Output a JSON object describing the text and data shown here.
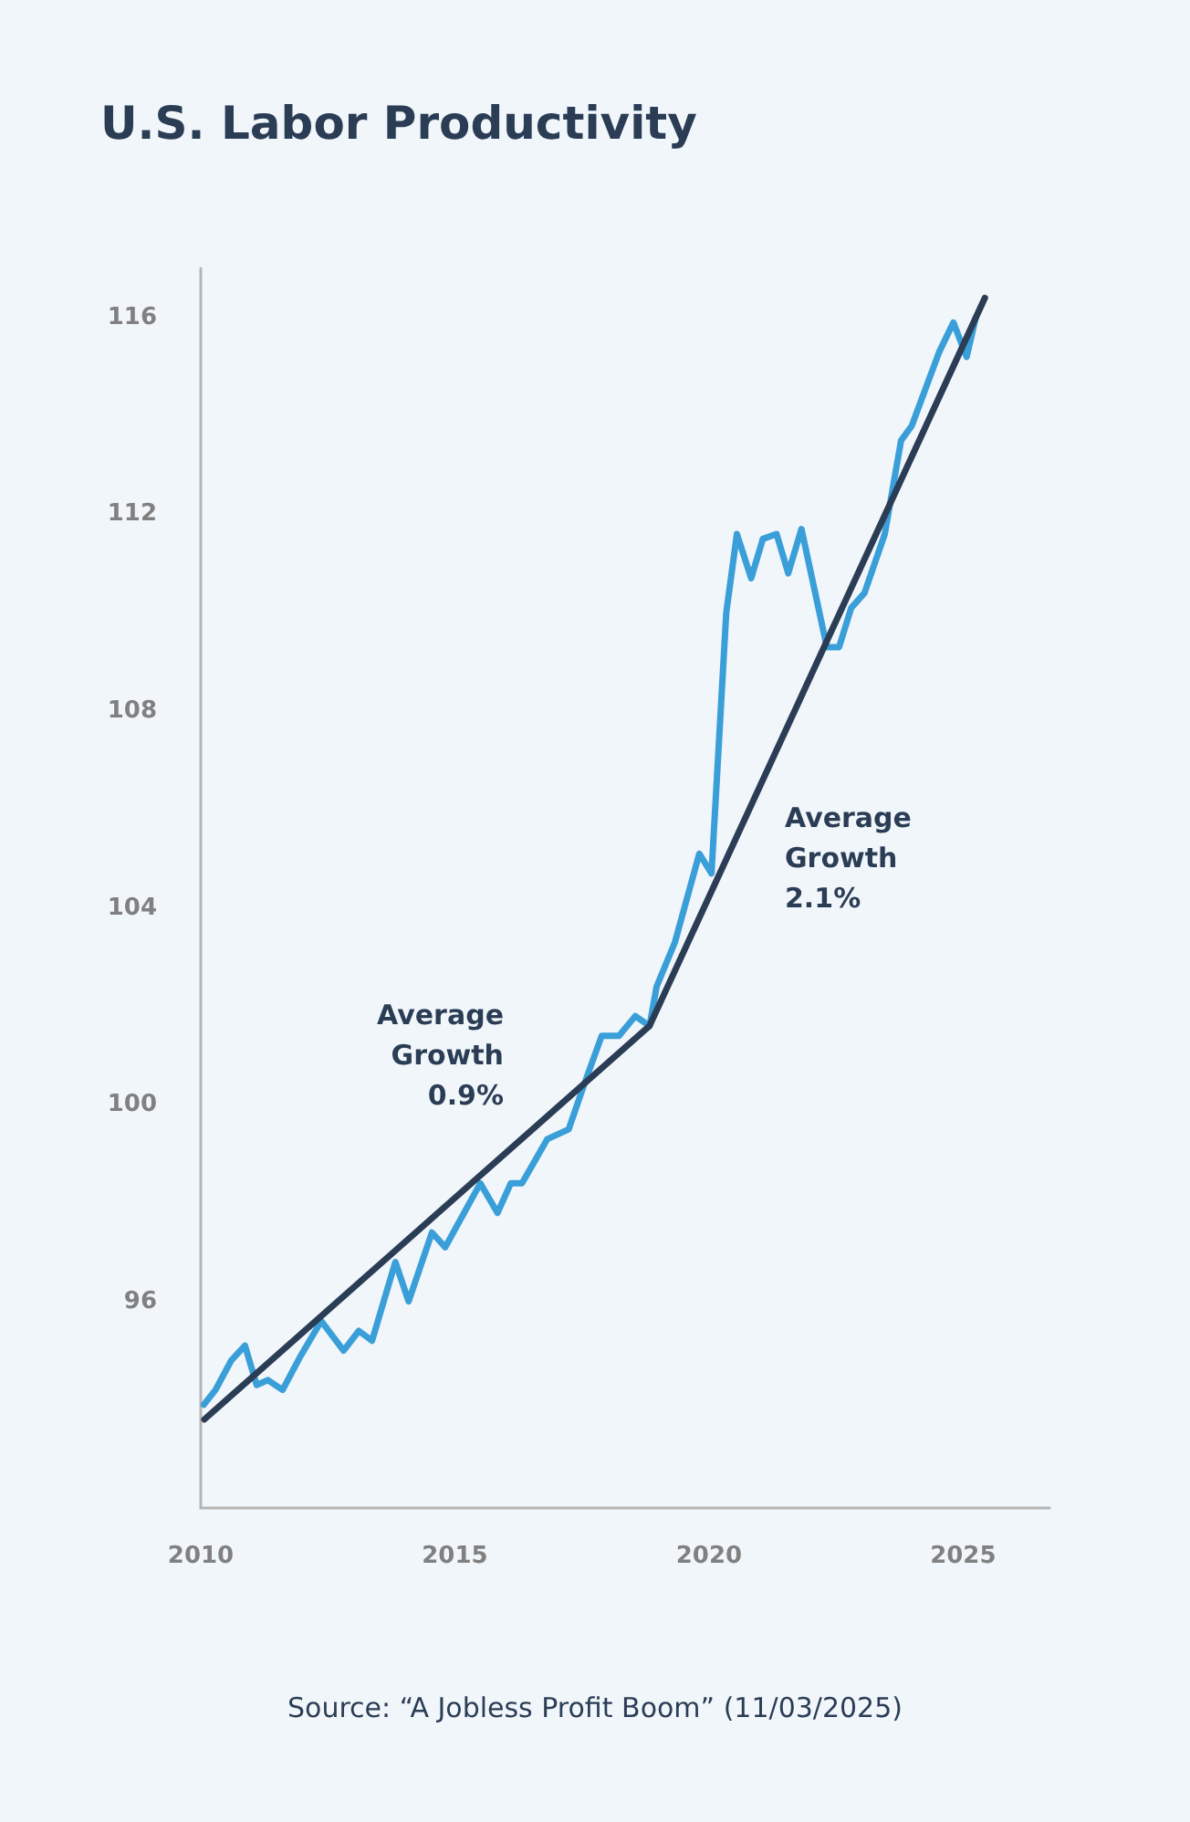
{
  "chart_data": {
    "type": "line",
    "title": "U.S. Labor Productivity",
    "xlim": [
      2010,
      2026.7
    ],
    "xticks": [
      2010,
      2015,
      2020,
      2025
    ],
    "ylim": [
      91.8,
      117
    ],
    "yticks": [
      96,
      100,
      104,
      108,
      112,
      116
    ],
    "grid": false,
    "marker": "none",
    "line_style": "solid",
    "series": [
      {
        "color": "#3a9fd8",
        "x": [
          2010.06,
          2010.29,
          2010.6,
          2010.87,
          2011.1,
          2011.32,
          2011.61,
          2011.97,
          2012.37,
          2012.81,
          2013.11,
          2013.37,
          2013.83,
          2014.09,
          2014.55,
          2014.81,
          2015.5,
          2015.84,
          2016.1,
          2016.32,
          2016.82,
          2017.24,
          2017.54,
          2017.89,
          2018.23,
          2018.55,
          2018.83,
          2018.97,
          2019.33,
          2019.81,
          2020.05,
          2020.34,
          2020.55,
          2020.83,
          2021.06,
          2021.33,
          2021.56,
          2021.82,
          2022.32,
          2022.56,
          2022.8,
          2023.06,
          2023.46,
          2023.78,
          2023.99,
          2024.53,
          2024.81,
          2025.07,
          2025.25
        ],
        "values": [
          93.9,
          94.2,
          94.8,
          95.1,
          94.3,
          94.4,
          94.2,
          94.9,
          95.6,
          95,
          95.4,
          95.2,
          96.8,
          96,
          97.4,
          97.1,
          98.4,
          97.8,
          98.4,
          98.4,
          99.3,
          99.5,
          100.4,
          101.4,
          101.4,
          101.8,
          101.6,
          102.4,
          103.3,
          105.1,
          104.7,
          110,
          111.6,
          110.7,
          111.5,
          111.6,
          110.8,
          111.7,
          109.3,
          109.3,
          110.1,
          110.4,
          111.6,
          113.5,
          113.8,
          115.3,
          115.9,
          115.2,
          116
        ]
      },
      {
        "color": "#2b3d55",
        "x": [
          2010.07,
          2018.83,
          2025.43
        ],
        "values": [
          93.6,
          101.6,
          116.4
        ]
      }
    ],
    "annotations": [
      "Average\nGrowth\n0.9%",
      "Average\nGrowth\n2.1%",
      "Source: “A Jobless Profit Boom” (11/03/2025)"
    ]
  }
}
